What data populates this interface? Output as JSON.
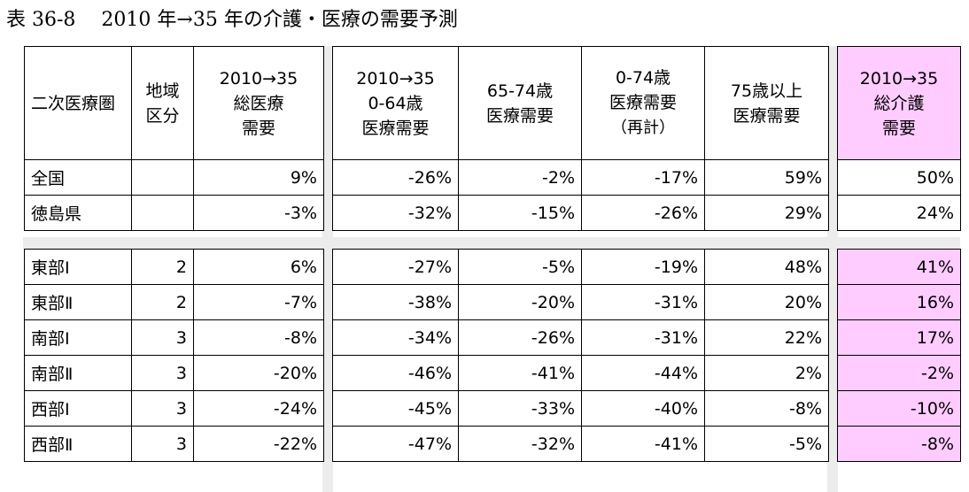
{
  "title": "表 36-8　 2010 年→35 年の介護・医療の需要予測",
  "headers": {
    "area": "二次医療圏",
    "region_type": [
      "地域",
      "区分"
    ],
    "total_medical": [
      "2010→35",
      "総医療",
      "需要"
    ],
    "age_0_64": [
      "2010→35",
      "0-64歳",
      "医療需要"
    ],
    "age_65_74": [
      "65-74歳",
      "医療需要"
    ],
    "age_0_74": [
      "0-74歳",
      "医療需要",
      "（再計）"
    ],
    "age_75_plus": [
      "75歳以上",
      "医療需要"
    ],
    "total_care": [
      "2010→35",
      "総介護",
      "需要"
    ]
  },
  "rows_national": [
    {
      "name": "全国",
      "type": "",
      "total_medical": "9%",
      "age_0_64": "-26%",
      "age_65_74": "-2%",
      "age_0_74": "-17%",
      "age_75_plus": "59%",
      "total_care": "50%"
    },
    {
      "name": "徳島県",
      "type": "",
      "total_medical": "-3%",
      "age_0_64": "-32%",
      "age_65_74": "-15%",
      "age_0_74": "-26%",
      "age_75_plus": "29%",
      "total_care": "24%"
    }
  ],
  "rows_areas": [
    {
      "name": "東部Ⅰ",
      "type": "2",
      "total_medical": "6%",
      "age_0_64": "-27%",
      "age_65_74": "-5%",
      "age_0_74": "-19%",
      "age_75_plus": "48%",
      "total_care": "41%"
    },
    {
      "name": "東部Ⅱ",
      "type": "2",
      "total_medical": "-7%",
      "age_0_64": "-38%",
      "age_65_74": "-20%",
      "age_0_74": "-31%",
      "age_75_plus": "20%",
      "total_care": "16%"
    },
    {
      "name": "南部Ⅰ",
      "type": "3",
      "total_medical": "-8%",
      "age_0_64": "-34%",
      "age_65_74": "-26%",
      "age_0_74": "-31%",
      "age_75_plus": "22%",
      "total_care": "17%"
    },
    {
      "name": "南部Ⅱ",
      "type": "3",
      "total_medical": "-20%",
      "age_0_64": "-46%",
      "age_65_74": "-41%",
      "age_0_74": "-44%",
      "age_75_plus": "2%",
      "total_care": "-2%"
    },
    {
      "name": "西部Ⅰ",
      "type": "3",
      "total_medical": "-24%",
      "age_0_64": "-45%",
      "age_65_74": "-33%",
      "age_0_74": "-40%",
      "age_75_plus": "-8%",
      "total_care": "-10%"
    },
    {
      "name": "西部Ⅱ",
      "type": "3",
      "total_medical": "-22%",
      "age_0_64": "-47%",
      "age_65_74": "-32%",
      "age_0_74": "-41%",
      "age_75_plus": "-5%",
      "total_care": "-8%"
    }
  ],
  "colors": {
    "care_highlight": "#ffccff",
    "separator": "#ececec"
  }
}
